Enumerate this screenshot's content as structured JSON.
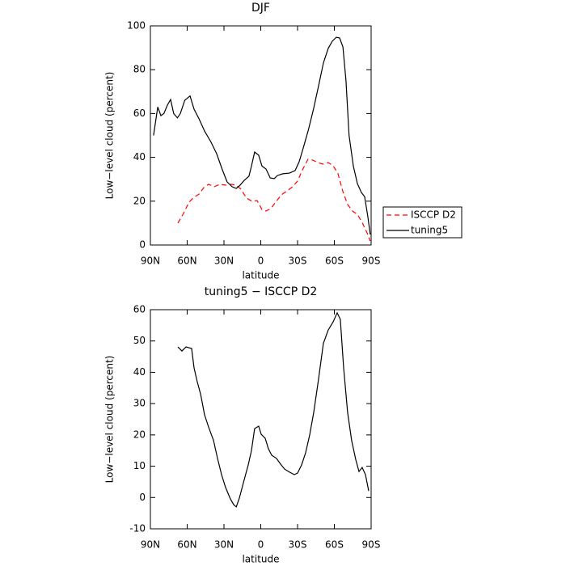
{
  "chart_data": [
    {
      "type": "line",
      "title": "DJF",
      "x_label": "latitude",
      "y_label": "Low−level cloud (percent)",
      "xlim": [
        90,
        -90
      ],
      "ylim": [
        0,
        100
      ],
      "xticks": [
        {
          "value": 90,
          "label": "90N"
        },
        {
          "value": 60,
          "label": "60N"
        },
        {
          "value": 30,
          "label": "30N"
        },
        0,
        {
          "value": -30,
          "label": "30S"
        },
        {
          "value": -60,
          "label": "60S"
        },
        {
          "value": -90,
          "label": "90S"
        }
      ],
      "yticks": [
        0,
        20,
        40,
        60,
        80,
        100
      ],
      "legend": "right",
      "series": [
        {
          "name": "ISCCP D2",
          "color": "#ff0000",
          "dash": "dashed",
          "x": [
            67.6,
            63,
            58.4,
            54.4,
            50.4,
            46.5,
            42.5,
            37.9,
            33.3,
            28.7,
            24,
            20,
            16.2,
            11.6,
            6.9,
            3,
            -1,
            -4.3,
            -8.2,
            -12.2,
            -16.8,
            -21.4,
            -26,
            -30,
            -34,
            -38.5,
            -42.5,
            -46.5,
            -51,
            -55,
            -59,
            -63,
            -67,
            -70.8,
            -74.8,
            -78.8,
            -82.7,
            -86.7,
            -89.3
          ],
          "values": [
            10,
            14.4,
            19.6,
            21.8,
            23.2,
            26.2,
            27.7,
            26.6,
            27.7,
            27.3,
            27.7,
            27.3,
            25.5,
            21.4,
            19.9,
            20.3,
            16.2,
            15.5,
            16.6,
            19.6,
            22.9,
            24.7,
            26.6,
            29.2,
            34.3,
            39.1,
            38.7,
            37.6,
            36.9,
            37.6,
            36.2,
            32.5,
            24.4,
            18.5,
            15.5,
            14,
            10.3,
            5.5,
            1.8
          ]
        },
        {
          "name": "tuning5",
          "color": "#000000",
          "dash": "solid",
          "x": [
            87.4,
            84,
            81.4,
            79,
            76,
            73.5,
            71,
            68,
            65.6,
            62,
            57.7,
            54.4,
            50.4,
            45.8,
            40.6,
            36,
            31.3,
            27.4,
            23.4,
            20,
            16.8,
            13.5,
            9.6,
            7.6,
            5,
            1.7,
            -1,
            -4.3,
            -7.7,
            -11,
            -13.5,
            -18,
            -23.4,
            -28,
            -31.3,
            -35,
            -39,
            -43,
            -47,
            -51,
            -55,
            -58.3,
            -61.6,
            -64.3,
            -67,
            -69.5,
            -72,
            -75.5,
            -78.8,
            -82,
            -84.7,
            -87.3,
            -89.3
          ],
          "values": [
            50,
            63,
            59,
            60,
            64,
            66.4,
            60,
            58,
            60,
            66,
            68,
            62,
            57.6,
            52,
            47,
            41.7,
            34.3,
            28.8,
            26.6,
            25.8,
            27.3,
            29.5,
            31.4,
            36,
            42.4,
            41,
            36,
            34.7,
            30.6,
            30.3,
            31.7,
            32.5,
            32.8,
            34,
            38,
            45,
            52.8,
            62,
            72.3,
            83,
            89.7,
            93,
            94.8,
            94.5,
            90.4,
            75,
            50,
            36,
            28,
            24,
            22,
            13,
            4.8
          ]
        }
      ]
    },
    {
      "type": "line",
      "title": "tuning5 − ISCCP D2",
      "x_label": "latitude",
      "y_label": "Low−level cloud (percent)",
      "xlim": [
        90,
        -90
      ],
      "ylim": [
        -10,
        60
      ],
      "xticks": [
        {
          "value": 90,
          "label": "90N"
        },
        {
          "value": 60,
          "label": "60N"
        },
        {
          "value": 30,
          "label": "30N"
        },
        0,
        {
          "value": -30,
          "label": "30S"
        },
        {
          "value": -60,
          "label": "60S"
        },
        {
          "value": -90,
          "label": "90S"
        }
      ],
      "yticks": [
        -10,
        0,
        10,
        20,
        30,
        40,
        50,
        60
      ],
      "color": "#000000",
      "x": [
        67.6,
        64.3,
        61,
        56.4,
        54.4,
        51.8,
        49,
        45.8,
        42.5,
        38.5,
        35.3,
        32,
        28.7,
        24.7,
        22,
        20,
        17.5,
        14.2,
        10.2,
        7.6,
        5,
        1.7,
        -0.3,
        -3.6,
        -6.2,
        -8.9,
        -12.8,
        -16.1,
        -19.4,
        -23.4,
        -27.4,
        -30,
        -33.3,
        -36.6,
        -39.9,
        -43.2,
        -47,
        -51,
        -55,
        -59,
        -62.3,
        -64.9,
        -67.6,
        -70.8,
        -74.1,
        -77.4,
        -80.1,
        -82.7,
        -85.4,
        -88
      ],
      "values": [
        48.1,
        46.8,
        48.1,
        47.6,
        41.4,
        37,
        32.9,
        26.4,
        22.5,
        18.2,
        12.5,
        7.3,
        3.2,
        -0.5,
        -2.3,
        -3,
        -0.2,
        4.7,
        10.4,
        15,
        22,
        22.8,
        20.2,
        18.9,
        15.6,
        13.5,
        12.5,
        10.7,
        9.1,
        8.1,
        7.3,
        7.8,
        10.4,
        14.3,
        20,
        27.2,
        37.5,
        49.2,
        53.5,
        56.1,
        59,
        56.9,
        41.4,
        27.2,
        18.2,
        12.2,
        8.3,
        9.6,
        7.3,
        2.1
      ]
    }
  ]
}
